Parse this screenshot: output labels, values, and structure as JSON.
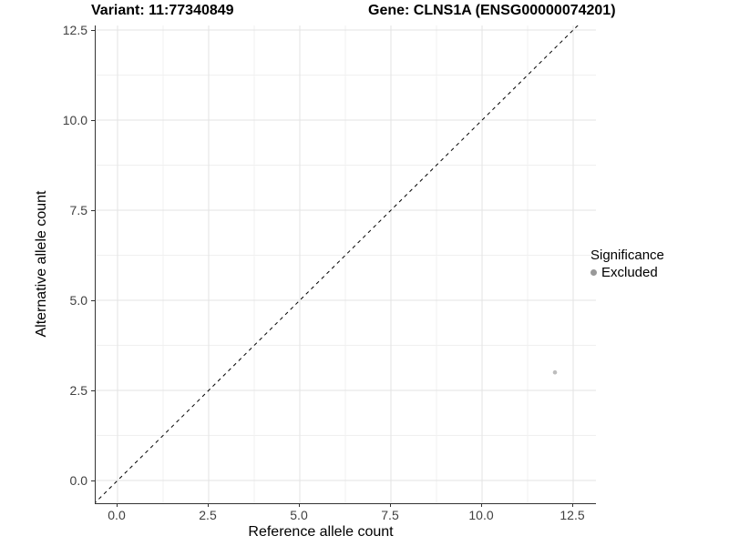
{
  "chart_data": {
    "type": "scatter",
    "title_left": "Variant: 11:77340849",
    "title_right": "Gene: CLNS1A (ENSG00000074201)",
    "xlabel": "Reference allele count",
    "ylabel": "Alternative allele count",
    "x_tick_labels": [
      "0.0",
      "2.5",
      "5.0",
      "7.5",
      "10.0",
      "12.5"
    ],
    "y_tick_labels": [
      "0.0",
      "2.5",
      "5.0",
      "7.5",
      "10.0",
      "12.5"
    ],
    "x_tick_values": [
      0,
      2.5,
      5,
      7.5,
      10,
      12.5
    ],
    "y_tick_values": [
      0,
      2.5,
      5,
      7.5,
      10,
      12.5
    ],
    "xlim": [
      0,
      12.5
    ],
    "ylim": [
      0,
      12.5
    ],
    "grid": "major-and-minor",
    "reference_line": {
      "type": "identity y=x",
      "style": "dashed",
      "color": "#000000"
    },
    "points": [
      {
        "x": 12,
        "y": 3,
        "significance": "Excluded",
        "color": "#bdbdbd"
      }
    ],
    "legend": {
      "position": "right",
      "title": "Significance",
      "items": [
        {
          "label": "Excluded",
          "color": "#999999"
        }
      ]
    },
    "colors": {
      "axis_line": "#333333",
      "tick_text": "#404040",
      "grid_major": "#e3e3e3",
      "grid_minor": "#f0f0f0",
      "background": "#ffffff"
    }
  }
}
